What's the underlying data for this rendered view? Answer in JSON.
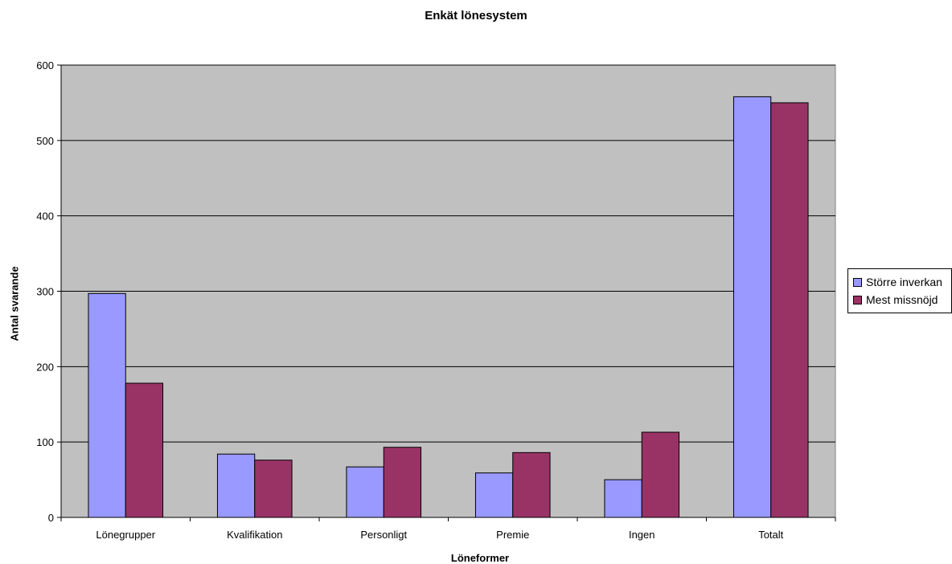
{
  "chart_data": {
    "type": "bar",
    "title": "Enkät lönesystem",
    "xlabel": "Löneformer",
    "ylabel": "Antal svarande",
    "categories": [
      "Lönegrupper",
      "Kvalifikation",
      "Personligt",
      "Premie",
      "Ingen",
      "Totalt"
    ],
    "series": [
      {
        "name": "Större inverkan",
        "color": "#9999ff",
        "values": [
          297,
          84,
          67,
          59,
          50,
          558
        ]
      },
      {
        "name": "Mest missnöjd",
        "color": "#993366",
        "values": [
          178,
          76,
          93,
          86,
          113,
          550
        ]
      }
    ],
    "ylim": [
      0,
      600
    ],
    "yticks": [
      0,
      100,
      200,
      300,
      400,
      500,
      600
    ],
    "grid": true,
    "plot_background": "#c0c0c0",
    "legend_position": "right"
  }
}
